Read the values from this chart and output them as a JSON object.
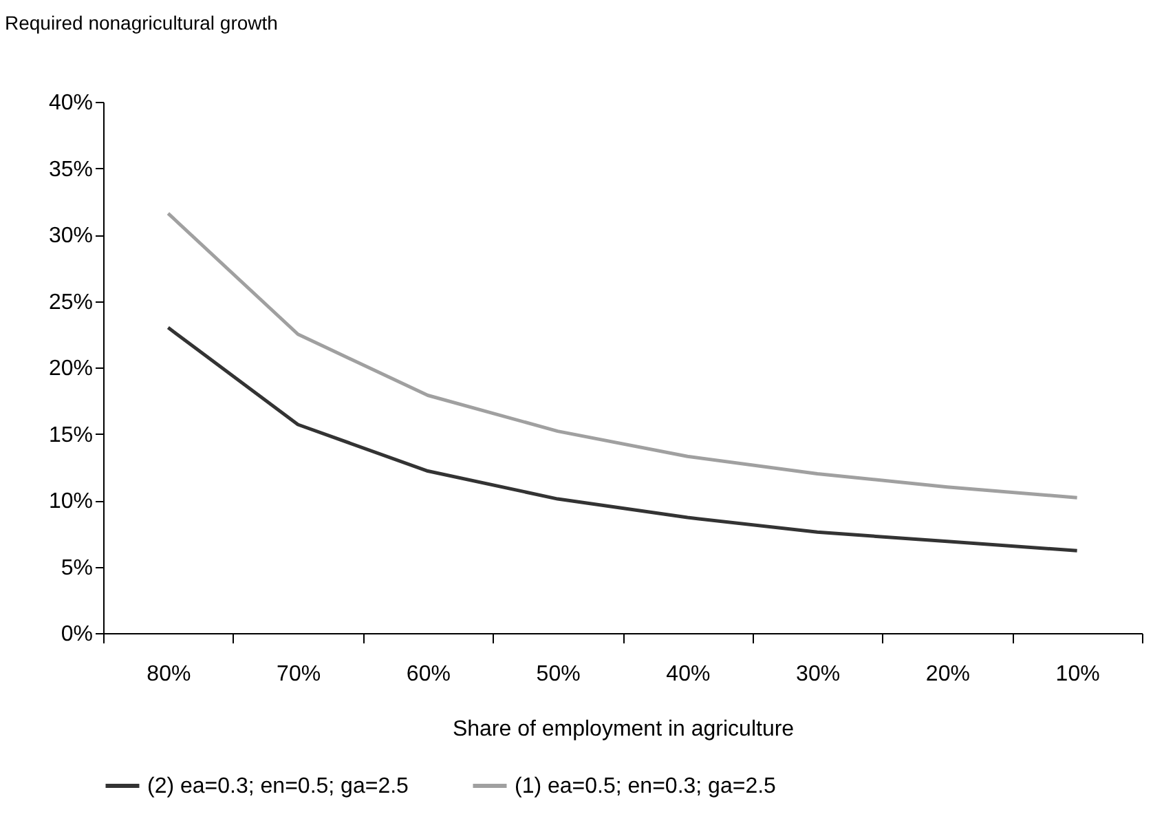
{
  "chart_data": {
    "type": "line",
    "ylabel": "Required nonagricultural growth",
    "xlabel": "Share of employment in agriculture",
    "categories": [
      "80%",
      "70%",
      "60%",
      "50%",
      "40%",
      "30%",
      "20%",
      "10%"
    ],
    "series": [
      {
        "name": "(2) ea=0.3; en=0.5; ga=2.5",
        "color": "#333333",
        "values": [
          23.0,
          15.7,
          12.2,
          10.1,
          8.7,
          7.6,
          6.9,
          6.2
        ]
      },
      {
        "name": "(1) ea=0.5; en=0.3; ga=2.5",
        "color": "#a0a0a0",
        "values": [
          31.6,
          22.5,
          17.9,
          15.2,
          13.3,
          12.0,
          11.0,
          10.2
        ]
      }
    ],
    "ylim": [
      0,
      40
    ],
    "yticks": [
      {
        "value": 0,
        "label": "0%"
      },
      {
        "value": 5,
        "label": "5%"
      },
      {
        "value": 10,
        "label": "10%"
      },
      {
        "value": 15,
        "label": "15%"
      },
      {
        "value": 20,
        "label": "20%"
      },
      {
        "value": 25,
        "label": "25%"
      },
      {
        "value": 30,
        "label": "30%"
      },
      {
        "value": 35,
        "label": "35%"
      },
      {
        "value": 40,
        "label": "40%"
      }
    ],
    "grid": false,
    "legend": "bottom",
    "marker": "none",
    "line_style": "solid"
  }
}
